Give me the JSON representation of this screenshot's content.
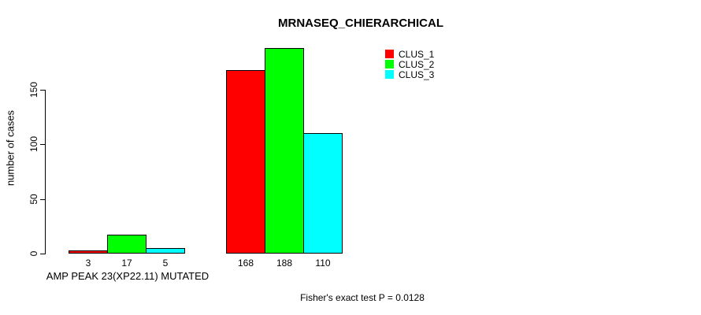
{
  "chart_data": {
    "type": "bar",
    "title": "MRNASEQ_CHIERARCHICAL",
    "ylabel": "number of cases",
    "yticks": [
      0,
      50,
      100,
      150
    ],
    "ylim": [
      0,
      195
    ],
    "grid": false,
    "legend_position": "top-right",
    "series": [
      {
        "name": "CLUS_1",
        "color": "#ff0000"
      },
      {
        "name": "CLUS_2",
        "color": "#00ff00"
      },
      {
        "name": "CLUS_3",
        "color": "#00ffff"
      }
    ],
    "groups": [
      {
        "label": "AMP PEAK 23(XP22.11) MUTATED",
        "values": [
          3,
          17,
          5
        ]
      },
      {
        "label": "",
        "values": [
          168,
          188,
          110
        ]
      }
    ],
    "footer": "Fisher's exact test P = 0.0128"
  }
}
